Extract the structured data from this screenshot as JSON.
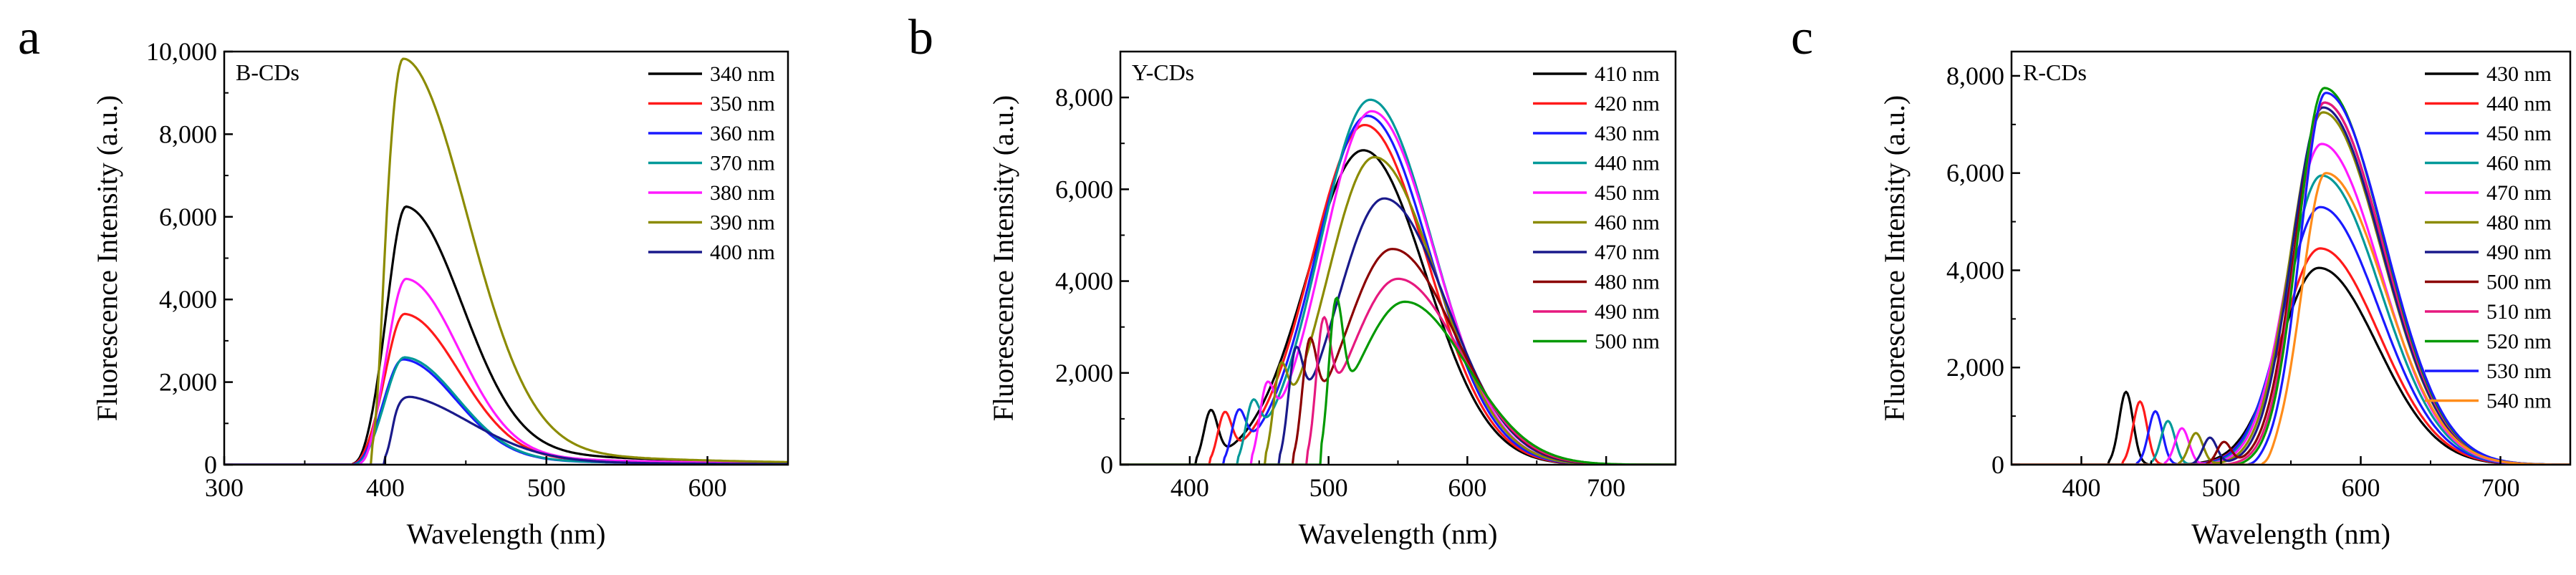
{
  "figure_title": "Fluorescence emission spectra of B-CDs, Y-CDs and R-CDs",
  "chart_data": [
    {
      "type": "line",
      "panel_letter": "a",
      "title": "B-CDs",
      "xlabel": "Wavelength (nm)",
      "ylabel": "Fluorescence Intensity (a.u.)",
      "xlim": [
        300,
        650
      ],
      "ylim": [
        0,
        10000
      ],
      "xticks": [
        300,
        400,
        500,
        600
      ],
      "yticks": [
        0,
        2000,
        4000,
        6000,
        8000,
        10000
      ],
      "xtick_labels": [
        "300",
        "400",
        "500",
        "600"
      ],
      "ytick_labels": [
        "0",
        "2,000",
        "4,000",
        "6,000",
        "8,000",
        "10,000"
      ],
      "legend_position": "top-right",
      "series": [
        {
          "name": "340 nm",
          "color": "#000000",
          "raman": [
            0,
            0,
            0
          ],
          "peak": 6250,
          "center": 413,
          "sl": 12,
          "sr": 35,
          "tail": 0.1,
          "edge": 380
        },
        {
          "name": "350 nm",
          "color": "#ff1a1a",
          "raman": [
            0,
            0,
            0
          ],
          "peak": 3650,
          "center": 412,
          "sl": 12,
          "sr": 34,
          "tail": 0.08,
          "edge": 380
        },
        {
          "name": "360 nm",
          "color": "#1a1aff",
          "raman": [
            0,
            0,
            0
          ],
          "peak": 2550,
          "center": 411,
          "sl": 12,
          "sr": 33,
          "tail": 0.08,
          "edge": 381
        },
        {
          "name": "370 nm",
          "color": "#009999",
          "raman": [
            0,
            0,
            0
          ],
          "peak": 2600,
          "center": 412,
          "sl": 12,
          "sr": 33,
          "tail": 0.08,
          "edge": 382
        },
        {
          "name": "380 nm",
          "color": "#ff1aff",
          "raman": [
            0,
            0,
            0
          ],
          "peak": 4500,
          "center": 413,
          "sl": 12,
          "sr": 33,
          "tail": 0.08,
          "edge": 385
        },
        {
          "name": "390 nm",
          "color": "#8b8b00",
          "raman": [
            0,
            0,
            0
          ],
          "peak": 9850,
          "center": 411,
          "sl": 12,
          "sr": 40,
          "tail": 0.07,
          "edge": 392
        },
        {
          "name": "400 nm",
          "color": "#1a1a8b",
          "raman": [
            0,
            0,
            0
          ],
          "peak": 1700,
          "center": 407,
          "sl": 8,
          "sr": 45,
          "tail": 0.1,
          "edge": 400
        }
      ]
    },
    {
      "type": "line",
      "panel_letter": "b",
      "title": "Y-CDs",
      "xlabel": "Wavelength (nm)",
      "ylabel": "Fluorescence Intensity (a.u.)",
      "xlim": [
        350,
        750
      ],
      "ylim": [
        0,
        9000
      ],
      "xticks": [
        400,
        500,
        600,
        700
      ],
      "yticks": [
        0,
        2000,
        4000,
        6000,
        8000
      ],
      "xtick_labels": [
        "400",
        "500",
        "600",
        "700"
      ],
      "ytick_labels": [
        "0",
        "2,000",
        "4,000",
        "6,000",
        "8,000"
      ],
      "legend_position": "top-right",
      "series": [
        {
          "name": "410 nm",
          "color": "#000000",
          "raman": [
            415,
            1050,
            5
          ],
          "peak": 6850,
          "center": 525,
          "sl": 40,
          "sr": 45,
          "tail": 0,
          "edge": 405
        },
        {
          "name": "420 nm",
          "color": "#ff1a1a",
          "raman": [
            425,
            950,
            5
          ],
          "peak": 7400,
          "center": 526,
          "sl": 38,
          "sr": 45,
          "tail": 0,
          "edge": 415
        },
        {
          "name": "430 nm",
          "color": "#1a1aff",
          "raman": [
            435,
            900,
            5
          ],
          "peak": 7600,
          "center": 528,
          "sl": 37,
          "sr": 45,
          "tail": 0,
          "edge": 425
        },
        {
          "name": "440 nm",
          "color": "#009999",
          "raman": [
            445,
            950,
            5
          ],
          "peak": 7950,
          "center": 530,
          "sl": 36,
          "sr": 45,
          "tail": 0,
          "edge": 435
        },
        {
          "name": "450 nm",
          "color": "#ff1aff",
          "raman": [
            455,
            1100,
            5
          ],
          "peak": 7700,
          "center": 531,
          "sl": 35,
          "sr": 45,
          "tail": 0,
          "edge": 445
        },
        {
          "name": "460 nm",
          "color": "#8b8b00",
          "raman": [
            465,
            1350,
            5
          ],
          "peak": 6700,
          "center": 533,
          "sl": 34,
          "sr": 45,
          "tail": 0,
          "edge": 455
        },
        {
          "name": "470 nm",
          "color": "#1a1a8b",
          "raman": [
            476,
            1600,
            5
          ],
          "peak": 5800,
          "center": 540,
          "sl": 34,
          "sr": 45,
          "tail": 0,
          "edge": 465
        },
        {
          "name": "480 nm",
          "color": "#8b0000",
          "raman": [
            486,
            1800,
            5
          ],
          "peak": 4700,
          "center": 546,
          "sl": 34,
          "sr": 45,
          "tail": 0,
          "edge": 475
        },
        {
          "name": "490 nm",
          "color": "#e6197f",
          "raman": [
            496,
            2100,
            5
          ],
          "peak": 4050,
          "center": 550,
          "sl": 34,
          "sr": 45,
          "tail": 0,
          "edge": 485
        },
        {
          "name": "500 nm",
          "color": "#009900",
          "raman": [
            505,
            2500,
            5
          ],
          "peak": 3550,
          "center": 555,
          "sl": 34,
          "sr": 45,
          "tail": 0,
          "edge": 495
        }
      ]
    },
    {
      "type": "line",
      "panel_letter": "c",
      "title": "R-CDs",
      "xlabel": "Wavelength (nm)",
      "ylabel": "Fluorescence Intensity (a.u.)",
      "xlim": [
        350,
        750
      ],
      "ylim": [
        0,
        8500
      ],
      "xticks": [
        400,
        500,
        600,
        700
      ],
      "yticks": [
        0,
        2000,
        4000,
        6000,
        8000
      ],
      "xtick_labels": [
        "400",
        "500",
        "600",
        "700"
      ],
      "ytick_labels": [
        "0",
        "2,000",
        "4,000",
        "6,000",
        "8,000"
      ],
      "legend_position": "top-right",
      "series": [
        {
          "name": "430 nm",
          "color": "#000000",
          "raman": [
            432,
            1500,
            5
          ],
          "peak": 4050,
          "center": 570,
          "sl": 28,
          "sr": 42,
          "tail": 0,
          "edge": 420
        },
        {
          "name": "440 nm",
          "color": "#ff1a1a",
          "raman": [
            442,
            1300,
            5
          ],
          "peak": 4450,
          "center": 571,
          "sl": 27,
          "sr": 42,
          "tail": 0,
          "edge": 430
        },
        {
          "name": "450 nm",
          "color": "#1a1aff",
          "raman": [
            453,
            1100,
            5
          ],
          "peak": 5300,
          "center": 571,
          "sl": 26,
          "sr": 42,
          "tail": 0,
          "edge": 440
        },
        {
          "name": "460 nm",
          "color": "#009999",
          "raman": [
            462,
            900,
            5
          ],
          "peak": 5950,
          "center": 572,
          "sl": 25,
          "sr": 42,
          "tail": 0,
          "edge": 450
        },
        {
          "name": "470 nm",
          "color": "#ff1aff",
          "raman": [
            472,
            750,
            5
          ],
          "peak": 6600,
          "center": 572,
          "sl": 24,
          "sr": 42,
          "tail": 0,
          "edge": 460
        },
        {
          "name": "480 nm",
          "color": "#8b8b00",
          "raman": [
            482,
            650,
            5
          ],
          "peak": 7250,
          "center": 573,
          "sl": 23,
          "sr": 42,
          "tail": 0,
          "edge": 470
        },
        {
          "name": "490 nm",
          "color": "#1a1a8b",
          "raman": [
            492,
            550,
            5
          ],
          "peak": 7350,
          "center": 573,
          "sl": 22,
          "sr": 42,
          "tail": 0,
          "edge": 480
        },
        {
          "name": "500 nm",
          "color": "#8b0000",
          "raman": [
            502,
            450,
            5
          ],
          "peak": 7450,
          "center": 574,
          "sl": 21,
          "sr": 42,
          "tail": 0,
          "edge": 490
        },
        {
          "name": "510 nm",
          "color": "#e6197f",
          "raman": [
            0,
            0,
            0
          ],
          "peak": 7450,
          "center": 574,
          "sl": 20,
          "sr": 42,
          "tail": 0,
          "edge": 500
        },
        {
          "name": "520 nm",
          "color": "#009900",
          "raman": [
            0,
            0,
            0
          ],
          "peak": 7750,
          "center": 574,
          "sl": 19,
          "sr": 42,
          "tail": 0,
          "edge": 510
        },
        {
          "name": "530 nm",
          "color": "#1a1aff",
          "raman": [
            0,
            0,
            0
          ],
          "peak": 7650,
          "center": 575,
          "sl": 18,
          "sr": 42,
          "tail": 0,
          "edge": 520
        },
        {
          "name": "540 nm",
          "color": "#ff8c1a",
          "raman": [
            0,
            0,
            0
          ],
          "peak": 6000,
          "center": 575,
          "sl": 17,
          "sr": 42,
          "tail": 0,
          "edge": 530
        }
      ]
    }
  ]
}
